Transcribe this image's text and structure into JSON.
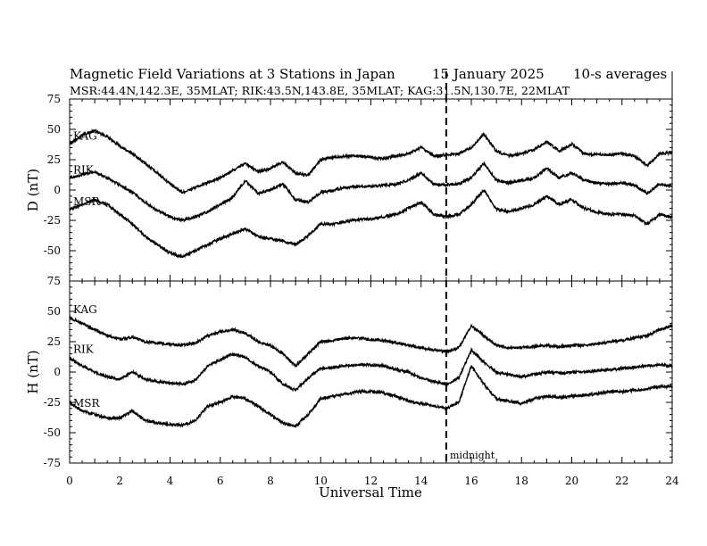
{
  "chart_data": {
    "type": "line",
    "title": "Magnetic Field Variations at 3 Stations in Japan",
    "date": "15 January  2025",
    "averaging": "10-s averages",
    "subtitle": "MSR:44.4N,142.3E, 35MLAT;  RIK:43.5N,143.8E, 35MLAT;  KAG:31.5N,130.7E, 22MLAT",
    "xlabel": "Universal Time",
    "xlim": [
      0,
      24
    ],
    "x_ticks": [
      "0",
      "2",
      "4",
      "6",
      "8",
      "10",
      "12",
      "14",
      "16",
      "18",
      "20",
      "22",
      "24"
    ],
    "midnight_label": "midnight",
    "midnight_ut": 15,
    "panels": [
      {
        "ylabel": "D (nT)",
        "ylim": [
          -75,
          75
        ],
        "y_ticks": [
          "75",
          "50",
          "25",
          "0",
          "-25",
          "-50",
          "-75"
        ],
        "series": [
          {
            "name": "KAG",
            "x": [
              0,
              0.5,
              1,
              1.5,
              2,
              2.5,
              3,
              3.5,
              4,
              4.5,
              5,
              5.5,
              6,
              6.5,
              7,
              7.5,
              8,
              8.5,
              9,
              9.5,
              10,
              10.5,
              11,
              11.5,
              12,
              12.5,
              13,
              13.5,
              14,
              14.5,
              15,
              15.5,
              16,
              16.5,
              17,
              17.5,
              18,
              18.5,
              19,
              19.5,
              20,
              20.5,
              21,
              21.5,
              22,
              22.5,
              23,
              23.5,
              24
            ],
            "values": [
              38,
              45,
              49,
              44,
              36,
              30,
              22,
              14,
              5,
              -2,
              2,
              6,
              10,
              16,
              22,
              15,
              18,
              23,
              14,
              12,
              25,
              27,
              28,
              28,
              27,
              26,
              28,
              30,
              35,
              28,
              29,
              30,
              35,
              46,
              32,
              28,
              30,
              33,
              40,
              32,
              38,
              30,
              29,
              29,
              30,
              28,
              20,
              30,
              31
            ]
          },
          {
            "name": "RIK",
            "x": [
              0,
              0.5,
              1,
              1.5,
              2,
              2.5,
              3,
              3.5,
              4,
              4.5,
              5,
              5.5,
              6,
              6.5,
              7,
              7.5,
              8,
              8.5,
              9,
              9.5,
              10,
              10.5,
              11,
              11.5,
              12,
              12.5,
              13,
              13.5,
              14,
              14.5,
              15,
              15.5,
              16,
              16.5,
              17,
              17.5,
              18,
              18.5,
              19,
              19.5,
              20,
              20.5,
              21,
              21.5,
              22,
              22.5,
              23,
              23.5,
              24
            ],
            "values": [
              10,
              13,
              15,
              10,
              4,
              -2,
              -10,
              -17,
              -22,
              -25,
              -22,
              -18,
              -12,
              -6,
              8,
              -3,
              0,
              5,
              -8,
              -10,
              -2,
              0,
              2,
              3,
              3,
              4,
              5,
              8,
              14,
              5,
              4,
              5,
              10,
              22,
              8,
              6,
              8,
              10,
              18,
              10,
              14,
              8,
              6,
              5,
              6,
              4,
              -3,
              5,
              3
            ]
          },
          {
            "name": "MSR",
            "x": [
              0,
              0.5,
              1,
              1.5,
              2,
              2.5,
              3,
              3.5,
              4,
              4.5,
              5,
              5.5,
              6,
              6.5,
              7,
              7.5,
              8,
              8.5,
              9,
              9.5,
              10,
              10.5,
              11,
              11.5,
              12,
              12.5,
              13,
              13.5,
              14,
              14.5,
              15,
              15.5,
              16,
              16.5,
              17,
              17.5,
              18,
              18.5,
              19,
              19.5,
              20,
              20.5,
              21,
              21.5,
              22,
              22.5,
              23,
              23.5,
              24
            ],
            "values": [
              -16,
              -12,
              -8,
              -12,
              -20,
              -28,
              -38,
              -45,
              -52,
              -55,
              -50,
              -45,
              -40,
              -36,
              -32,
              -38,
              -40,
              -42,
              -45,
              -38,
              -28,
              -28,
              -26,
              -24,
              -24,
              -22,
              -20,
              -15,
              -10,
              -20,
              -22,
              -20,
              -12,
              0,
              -16,
              -18,
              -15,
              -12,
              -5,
              -12,
              -8,
              -15,
              -18,
              -20,
              -20,
              -21,
              -28,
              -20,
              -22
            ]
          }
        ]
      },
      {
        "ylabel": "H (nT)",
        "ylim": [
          -75,
          75
        ],
        "y_ticks": [
          "75",
          "50",
          "25",
          "0",
          "-25",
          "-50",
          "-75"
        ],
        "series": [
          {
            "name": "KAG",
            "x": [
              0,
              0.5,
              1,
              1.5,
              2,
              2.5,
              3,
              3.5,
              4,
              4.5,
              5,
              5.5,
              6,
              6.5,
              7,
              7.5,
              8,
              8.5,
              9,
              9.5,
              10,
              10.5,
              11,
              11.5,
              12,
              12.5,
              13,
              13.5,
              14,
              14.5,
              15,
              15.5,
              16,
              16.5,
              17,
              17.5,
              18,
              18.5,
              19,
              19.5,
              20,
              20.5,
              21,
              21.5,
              22,
              22.5,
              23,
              23.5,
              24
            ],
            "values": [
              45,
              40,
              35,
              30,
              27,
              29,
              25,
              24,
              23,
              22,
              24,
              30,
              33,
              35,
              32,
              25,
              22,
              15,
              5,
              15,
              25,
              26,
              28,
              28,
              27,
              26,
              24,
              22,
              20,
              18,
              17,
              20,
              38,
              30,
              22,
              20,
              20,
              21,
              22,
              21,
              22,
              22,
              23,
              25,
              26,
              28,
              30,
              35,
              38
            ]
          },
          {
            "name": "RIK",
            "x": [
              0,
              0.5,
              1,
              1.5,
              2,
              2.5,
              3,
              3.5,
              4,
              4.5,
              5,
              5.5,
              6,
              6.5,
              7,
              7.5,
              8,
              8.5,
              9,
              9.5,
              10,
              10.5,
              11,
              11.5,
              12,
              12.5,
              13,
              13.5,
              14,
              14.5,
              15,
              15.5,
              16,
              16.5,
              17,
              17.5,
              18,
              18.5,
              19,
              19.5,
              20,
              20.5,
              21,
              21.5,
              22,
              22.5,
              23,
              23.5,
              24
            ],
            "values": [
              12,
              5,
              0,
              -4,
              -6,
              0,
              -6,
              -8,
              -9,
              -10,
              -7,
              5,
              10,
              15,
              12,
              5,
              0,
              -10,
              -15,
              -5,
              3,
              4,
              5,
              6,
              6,
              5,
              2,
              0,
              -5,
              -8,
              -10,
              -5,
              18,
              8,
              0,
              -2,
              -4,
              -2,
              0,
              -1,
              0,
              0,
              1,
              2,
              3,
              4,
              5,
              6,
              5
            ]
          },
          {
            "name": "MSR",
            "x": [
              0,
              0.5,
              1,
              1.5,
              2,
              2.5,
              3,
              3.5,
              4,
              4.5,
              5,
              5.5,
              6,
              6.5,
              7,
              7.5,
              8,
              8.5,
              9,
              9.5,
              10,
              10.5,
              11,
              11.5,
              12,
              12.5,
              13,
              13.5,
              14,
              14.5,
              15,
              15.5,
              16,
              16.5,
              17,
              17.5,
              18,
              18.5,
              19,
              19.5,
              20,
              20.5,
              21,
              21.5,
              22,
              22.5,
              23,
              23.5,
              24
            ],
            "values": [
              -25,
              -32,
              -35,
              -38,
              -38,
              -32,
              -40,
              -42,
              -43,
              -44,
              -40,
              -28,
              -25,
              -20,
              -22,
              -28,
              -35,
              -42,
              -45,
              -35,
              -22,
              -20,
              -18,
              -16,
              -16,
              -17,
              -20,
              -24,
              -26,
              -28,
              -30,
              -25,
              5,
              -10,
              -22,
              -24,
              -26,
              -22,
              -20,
              -21,
              -20,
              -19,
              -18,
              -16,
              -16,
              -15,
              -14,
              -12,
              -12
            ]
          }
        ]
      }
    ]
  }
}
